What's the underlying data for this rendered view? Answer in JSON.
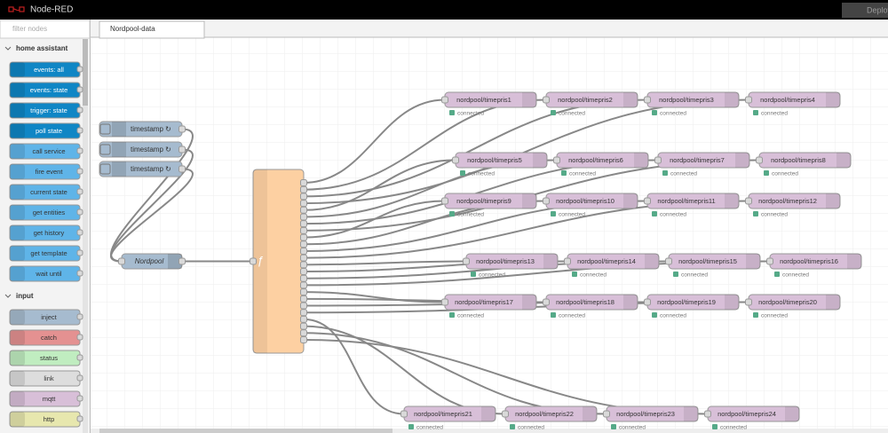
{
  "header": {
    "title": "Node-RED",
    "deploy": "Deploy"
  },
  "palette": {
    "filter_placeholder": "filter nodes",
    "categories": [
      {
        "label": "home assistant",
        "nodes": [
          "events: all",
          "events: state",
          "trigger: state",
          "poll state",
          "call service",
          "fire event",
          "current state",
          "get entities",
          "get history",
          "get template",
          "wait until"
        ]
      },
      {
        "label": "input",
        "nodes": [
          "inject",
          "catch",
          "status",
          "link",
          "mqtt",
          "http"
        ]
      }
    ]
  },
  "tabs": [
    "Nordpool-data"
  ],
  "flow": {
    "inject_nodes": [
      "timestamp ↻",
      "timestamp ↻",
      "timestamp ↻"
    ],
    "nordpool_node": "Nordpool",
    "function_icon": "ƒ",
    "mqtt_nodes": [
      {
        "label": "nordpool/timepris1",
        "status": "connected"
      },
      {
        "label": "nordpool/timepris2",
        "status": "connected"
      },
      {
        "label": "nordpool/timepris3",
        "status": "connected"
      },
      {
        "label": "nordpool/timepris4",
        "status": "connected"
      },
      {
        "label": "nordpool/timepris5",
        "status": "connected"
      },
      {
        "label": "nordpool/timepris6",
        "status": "connected"
      },
      {
        "label": "nordpool/timepris7",
        "status": "connected"
      },
      {
        "label": "nordpool/timepris8",
        "status": "connected"
      },
      {
        "label": "nordpool/timepris9",
        "status": "connected"
      },
      {
        "label": "nordpool/timepris10",
        "status": "connected"
      },
      {
        "label": "nordpool/timepris11",
        "status": "connected"
      },
      {
        "label": "nordpool/timepris12",
        "status": "connected"
      },
      {
        "label": "nordpool/timepris13",
        "status": "connected"
      },
      {
        "label": "nordpool/timepris14",
        "status": "connected"
      },
      {
        "label": "nordpool/timepris15",
        "status": "connected"
      },
      {
        "label": "nordpool/timepris16",
        "status": "connected"
      },
      {
        "label": "nordpool/timepris17",
        "status": "connected"
      },
      {
        "label": "nordpool/timepris18",
        "status": "connected"
      },
      {
        "label": "nordpool/timepris19",
        "status": "connected"
      },
      {
        "label": "nordpool/timepris20",
        "status": "connected"
      },
      {
        "label": "nordpool/timepris21",
        "status": "connected"
      },
      {
        "label": "nordpool/timepris22",
        "status": "connected"
      },
      {
        "label": "nordpool/timepris23",
        "status": "connected"
      },
      {
        "label": "nordpool/timepris24",
        "status": "connected"
      }
    ]
  }
}
